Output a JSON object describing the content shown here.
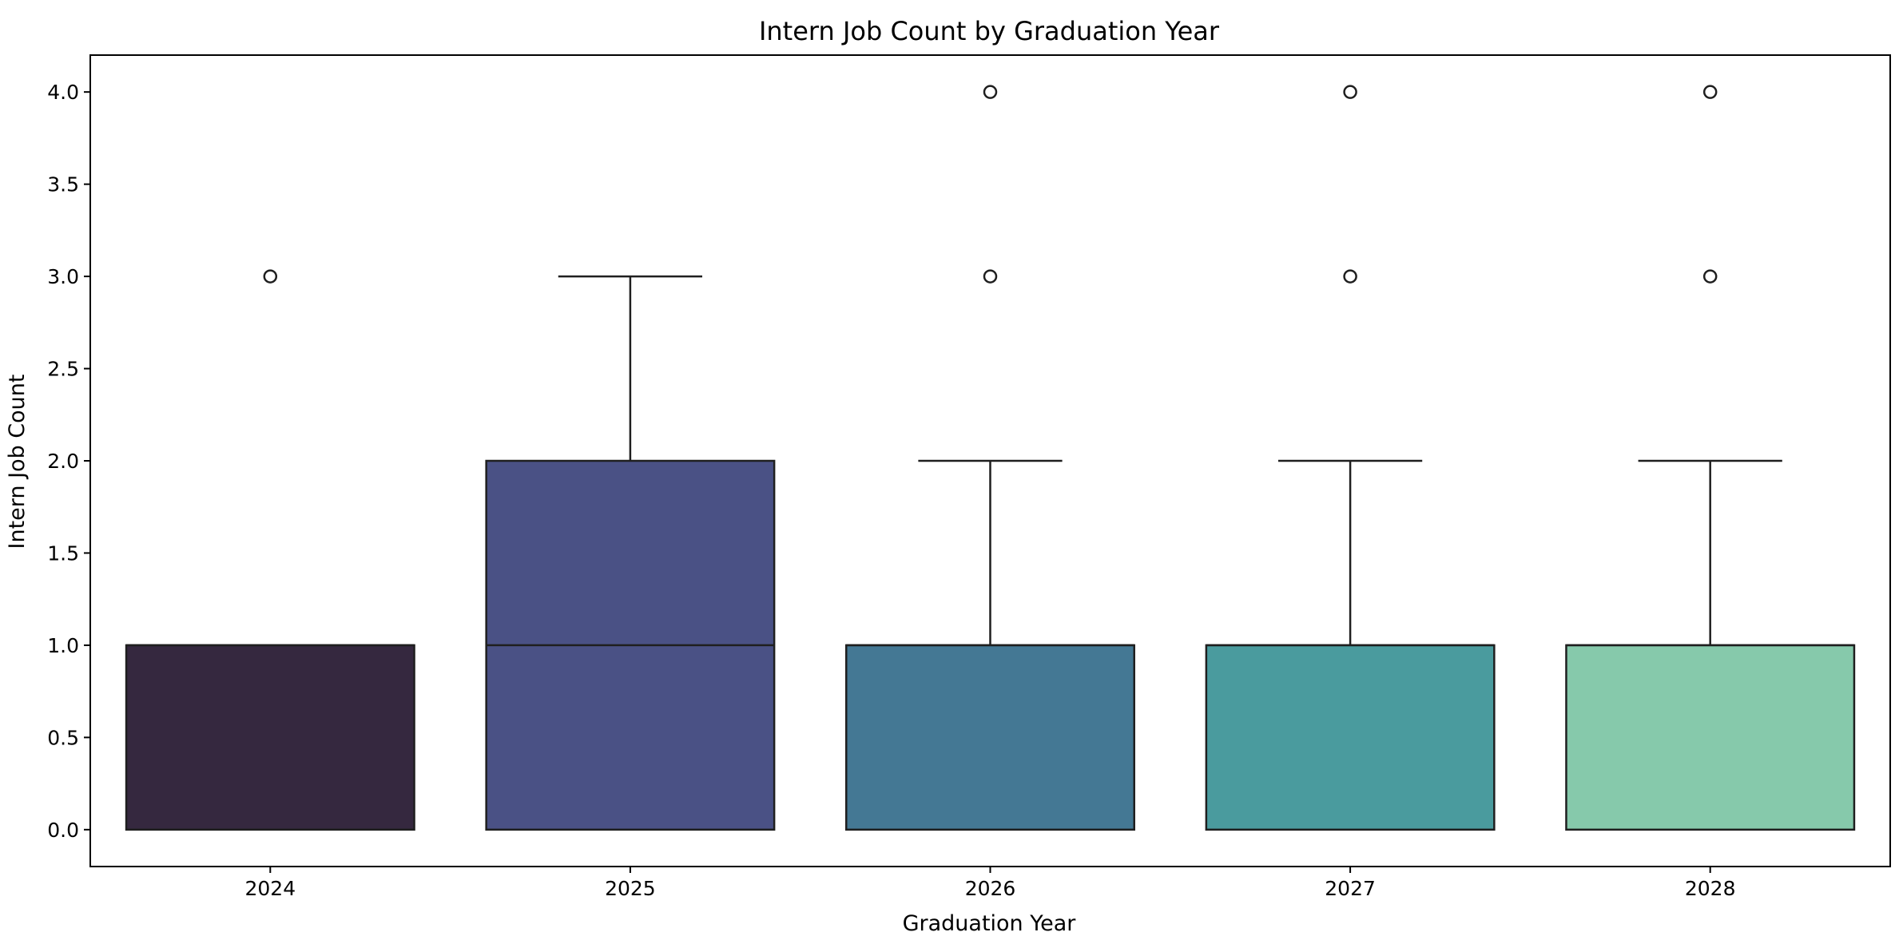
{
  "chart_data": {
    "type": "box",
    "title": "Intern Job Count by Graduation Year",
    "xlabel": "Graduation Year",
    "ylabel": "Intern Job Count",
    "ylim": [
      -0.2,
      4.2
    ],
    "yticks": [
      "0.0",
      "0.5",
      "1.0",
      "1.5",
      "2.0",
      "2.5",
      "3.0",
      "3.5",
      "4.0"
    ],
    "grid": false,
    "legend": "none",
    "categories": [
      "2024",
      "2025",
      "2026",
      "2027",
      "2028"
    ],
    "boxes": [
      {
        "category": "2024",
        "q1": 0,
        "median": 1,
        "q3": 1,
        "whisker_low": 0,
        "whisker_high": 1,
        "outliers": [
          3
        ],
        "color": "#35283f"
      },
      {
        "category": "2025",
        "q1": 0,
        "median": 1,
        "q3": 2,
        "whisker_low": 0,
        "whisker_high": 3,
        "outliers": [],
        "color": "#4a5185"
      },
      {
        "category": "2026",
        "q1": 0,
        "median": 1,
        "q3": 1,
        "whisker_low": 0,
        "whisker_high": 2,
        "outliers": [
          3,
          4
        ],
        "color": "#447894"
      },
      {
        "category": "2027",
        "q1": 0,
        "median": 1,
        "q3": 1,
        "whisker_low": 0,
        "whisker_high": 2,
        "outliers": [
          3,
          4
        ],
        "color": "#4a9b9e"
      },
      {
        "category": "2028",
        "q1": 0,
        "median": 1,
        "q3": 1,
        "whisker_low": 0,
        "whisker_high": 2,
        "outliers": [
          3,
          4
        ],
        "color": "#86c9ab"
      }
    ]
  }
}
